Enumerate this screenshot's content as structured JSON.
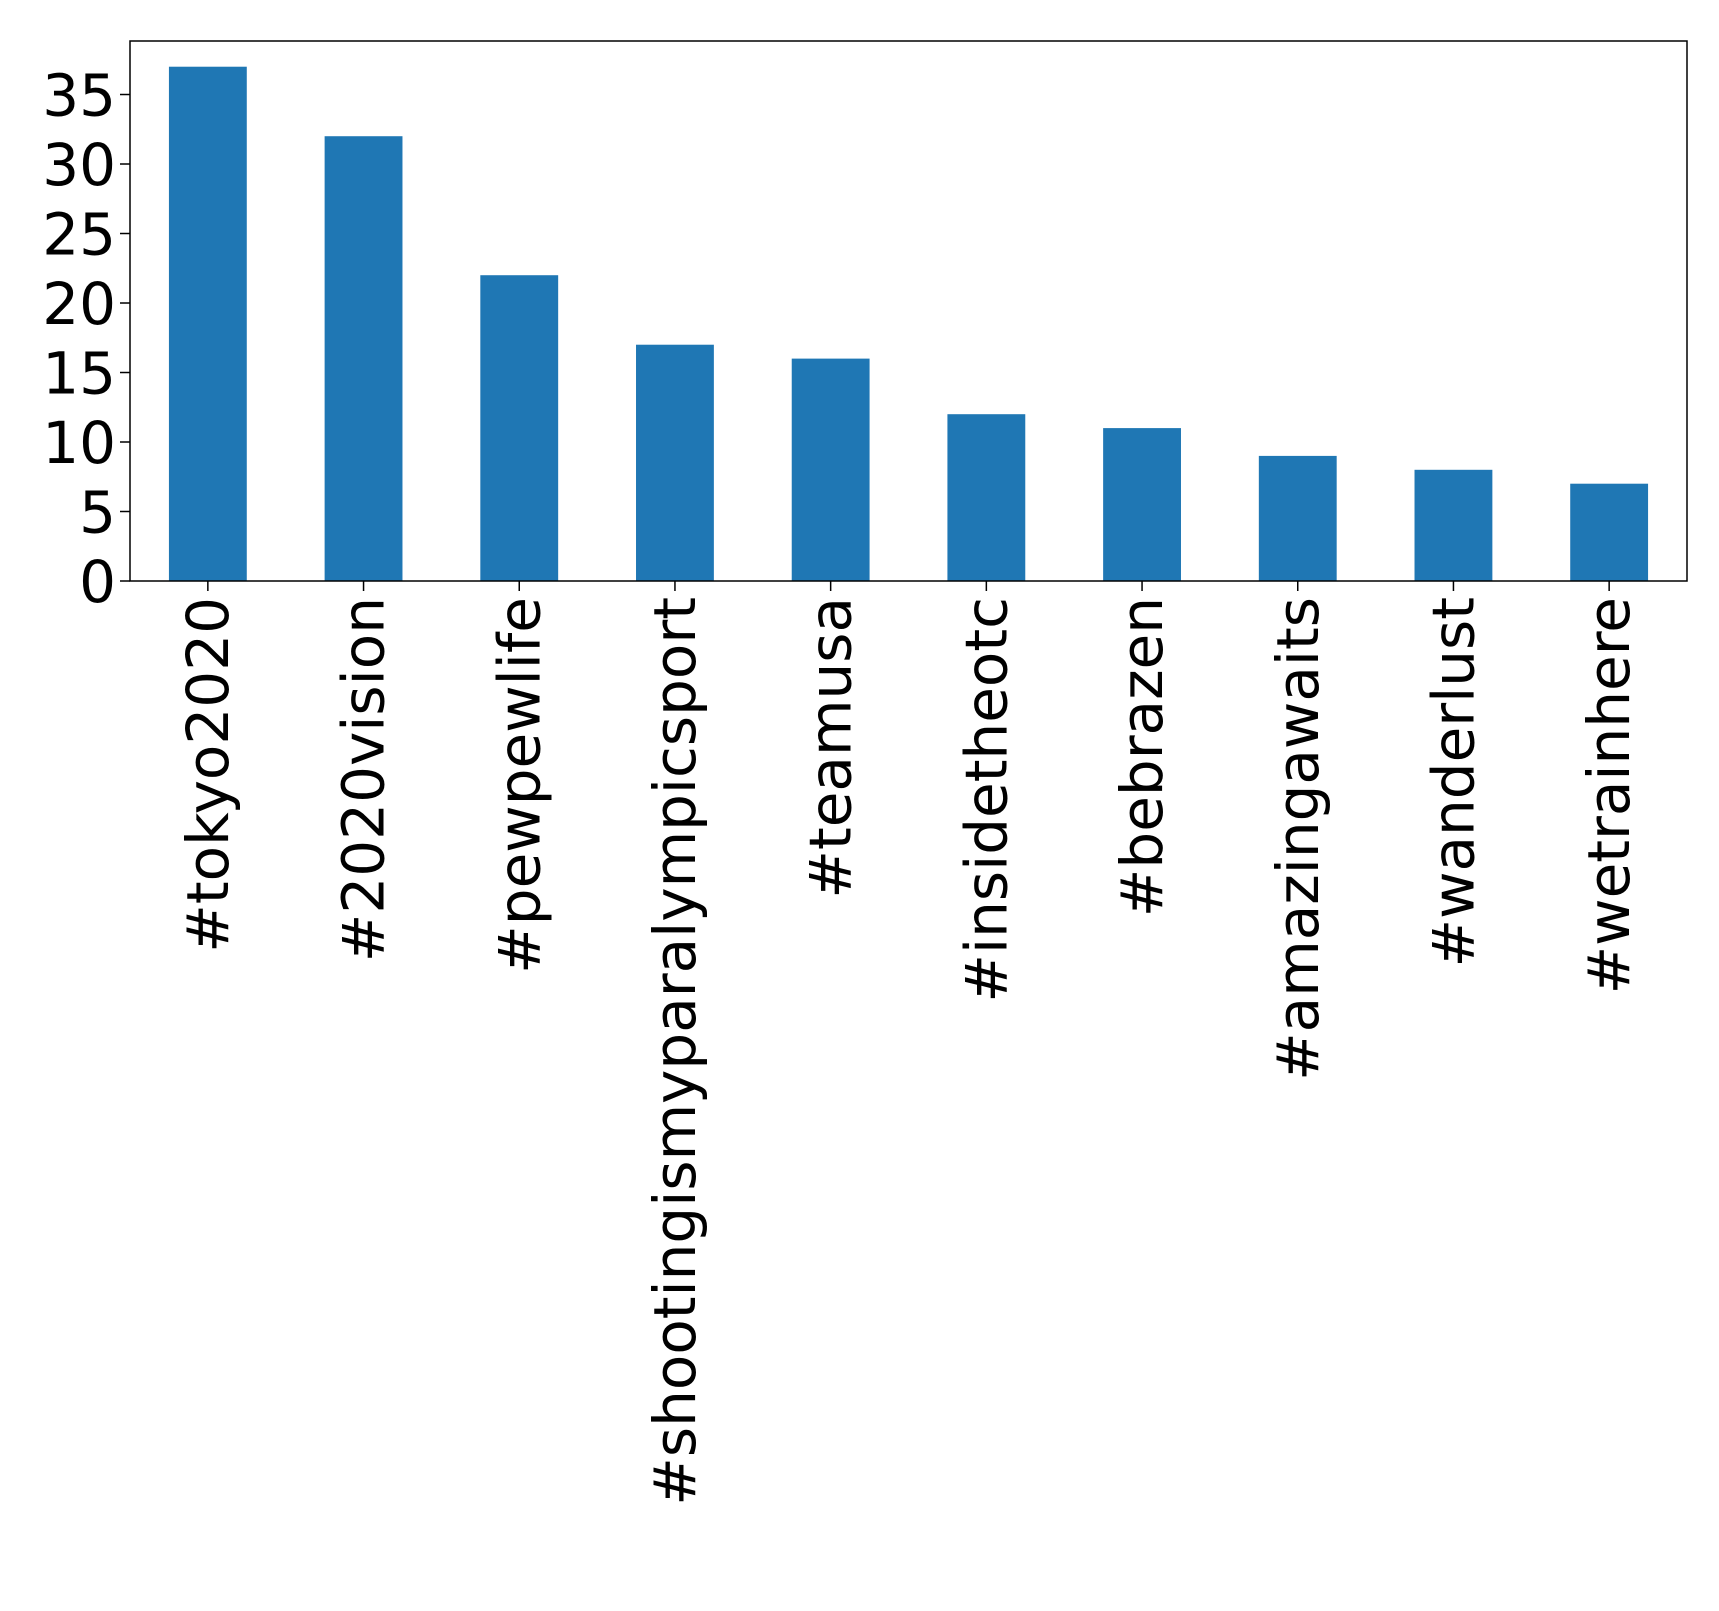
{
  "chart_data": {
    "type": "bar",
    "title": "",
    "xlabel": "",
    "ylabel": "",
    "categories": [
      "#tokyo2020",
      "#2020vision",
      "#pewpewlife",
      "#shootingismyparalympicsport",
      "#teamusa",
      "#insidetheotc",
      "#bebrazen",
      "#amazingawaits",
      "#wanderlust",
      "#wetrainhere"
    ],
    "values": [
      37,
      32,
      22,
      17,
      16,
      12,
      11,
      9,
      8,
      7
    ],
    "ylim": [
      0,
      38.85
    ],
    "yticks": [
      0,
      5,
      10,
      15,
      20,
      25,
      30,
      35
    ],
    "ytick_labels": [
      "0",
      "5",
      "10",
      "15",
      "20",
      "25",
      "30",
      "35"
    ],
    "grid": false,
    "legend": false,
    "bar_color": "#1f77b4"
  }
}
